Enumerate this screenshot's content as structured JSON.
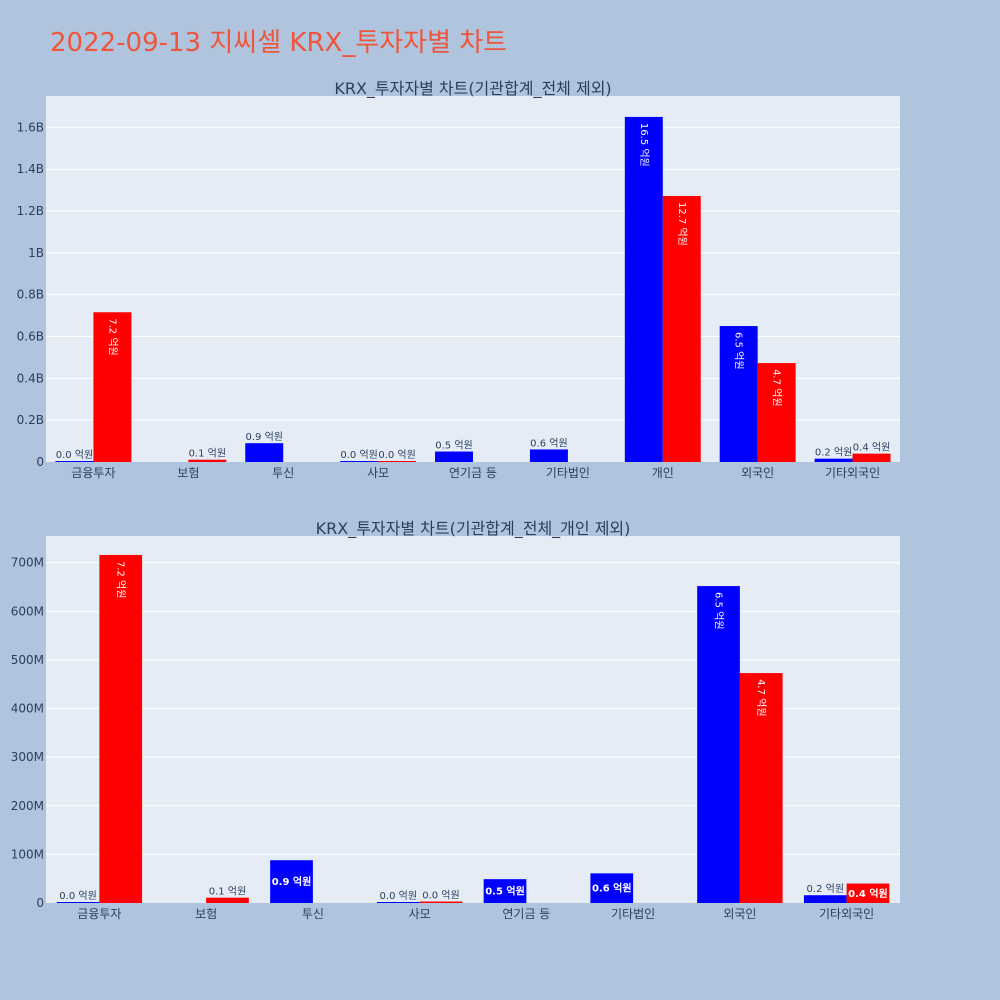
{
  "page": {
    "title": "2022-09-13 지씨셀 KRX_투자자별 차트"
  },
  "colors": {
    "background": "#b0c4de",
    "plot_bg": "#e5ecf6",
    "grid": "#ffffff",
    "buy": "#0000ff",
    "sell": "#ff0000",
    "title": "#ef553b",
    "text": "#2a3f5f"
  },
  "chart_data": [
    {
      "type": "bar",
      "title": "KRX_투자자별 차트(기관합계_전체 제외)",
      "categories": [
        "금융투자",
        "보험",
        "투신",
        "사모",
        "연기금 등",
        "기타법인",
        "개인",
        "외국인",
        "기타외국인"
      ],
      "ylim": [
        0,
        1750000000
      ],
      "yticks": [
        0,
        200000000,
        400000000,
        600000000,
        800000000,
        1000000000,
        1200000000,
        1400000000,
        1600000000
      ],
      "ytick_labels": [
        "0",
        "0.2B",
        "0.4B",
        "0.6B",
        "0.8B",
        "1B",
        "1.2B",
        "1.4B",
        "1.6B"
      ],
      "grid": true,
      "series": [
        {
          "color": "#0000ff",
          "values": [
            1000000,
            null,
            90000000,
            2000000,
            50000000,
            60000000,
            1650000000,
            650000000,
            16000000
          ],
          "labels": [
            "0.0 억원",
            "",
            "0.9 억원",
            "0.0 억원",
            "0.5 억원",
            "0.6 억원",
            "16.5 억원",
            "6.5 억원",
            "0.2 억원"
          ]
        },
        {
          "color": "#ff0000",
          "values": [
            716000000,
            11000000,
            null,
            3000000,
            null,
            null,
            1272000000,
            473000000,
            40000000
          ],
          "labels": [
            "7.2 억원",
            "0.1 억원",
            "",
            "0.0 억원",
            "",
            "",
            "12.7 억원",
            "4.7 억원",
            "0.4 억원"
          ]
        }
      ]
    },
    {
      "type": "bar",
      "title": "KRX_투자자별 차트(기관합계_전체_개인 제외)",
      "categories": [
        "금융투자",
        "보험",
        "투신",
        "사모",
        "연기금 등",
        "기타법인",
        "외국인",
        "기타외국인"
      ],
      "ylim": [
        0,
        755000000
      ],
      "yticks": [
        0,
        100000000,
        200000000,
        300000000,
        400000000,
        500000000,
        600000000,
        700000000
      ],
      "ytick_labels": [
        "0",
        "100M",
        "200M",
        "300M",
        "400M",
        "500M",
        "600M",
        "700M"
      ],
      "grid": true,
      "series": [
        {
          "color": "#0000ff",
          "values": [
            1000000,
            null,
            88000000,
            2000000,
            49000000,
            61000000,
            652000000,
            16000000
          ],
          "labels": [
            "0.0 억원",
            "",
            "0.9 억원",
            "0.0 억원",
            "0.5 억원",
            "0.6 억원",
            "6.5 억원",
            "0.2 억원"
          ]
        },
        {
          "color": "#ff0000",
          "values": [
            716000000,
            11000000,
            null,
            3000000,
            null,
            null,
            473000000,
            40000000
          ],
          "labels": [
            "7.2 억원",
            "0.1 억원",
            "",
            "0.0 억원",
            "",
            "",
            "4.7 억원",
            "0.4 억원"
          ]
        }
      ]
    }
  ]
}
